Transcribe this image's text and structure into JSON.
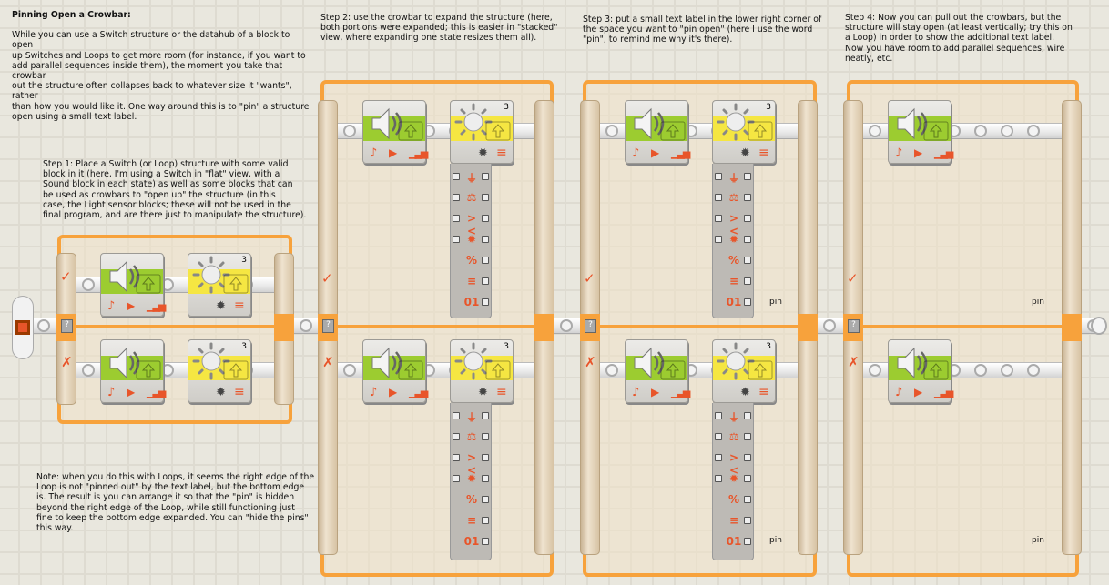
{
  "intro": {
    "title": "Pinning Open a Crowbar:",
    "body": "While you can use a Switch structure or the datahub of a block to open\nup Switches and Loops to get more room (for instance, if you want to\nadd parallel sequences inside them), the moment you take that crowbar\nout the structure often collapses back to whatever size it \"wants\", rather\nthan how you would like it. One way around this is to \"pin\" a structure\nopen using a small text label."
  },
  "step1": "Step 1: Place a Switch (or Loop) structure with some valid\nblock in it (here, I'm using a Switch in \"flat\" view, with a\nSound block in each state) as well as some blocks that can\nbe used as crowbars to \"open up\" the structure (in this\ncase, the Light sensor blocks; these will not be used in the\nfinal program, and are there just to manipulate the structure).",
  "step2": "Step 2: use the crowbar to expand the structure (here,\nboth portions were expanded; this is easier in \"stacked\"\nview, where expanding one state resizes them all).",
  "step3": "Step 3: put a small text label in the lower right corner of\nthe space you want to \"pin open\" (here I use the word\n\"pin\", to remind me why it's there).",
  "step4": "Step 4: Now you can pull out the crowbars, but the\nstructure will stay open (at least vertically; try this on\na Loop) in order to show the additional text label.\nNow you have room to add parallel sequences, wire\nneatly, etc.",
  "note": "Note: when you do this with Loops, it seems the right edge of the\nLoop is not \"pinned out\" by the text label, but the bottom edge\nis. The result is you can arrange it so that the \"pin\" is hidden\nbeyond the right edge of the Loop, while still functioning just\nfine to keep the bottom edge expanded. You can \"hide the pins\"\nthis way.",
  "block_labels": {
    "light_port": "3",
    "pin_label": "pin"
  },
  "true_mark": "✓",
  "false_mark": "✗",
  "datahub_icons": [
    "plug-icon",
    "scale-icon",
    "compare-icon",
    "light-icon",
    "percent-icon",
    "bars-icon",
    "binary-icon"
  ],
  "datahub_glyphs": [
    "⏚",
    "⚖",
    "><",
    "✹",
    "%",
    "≡",
    "01"
  ],
  "colors": {
    "accent": "#f7a23c",
    "sound": "#9ccc30",
    "light": "#f5e642",
    "icon": "#e8552a"
  }
}
